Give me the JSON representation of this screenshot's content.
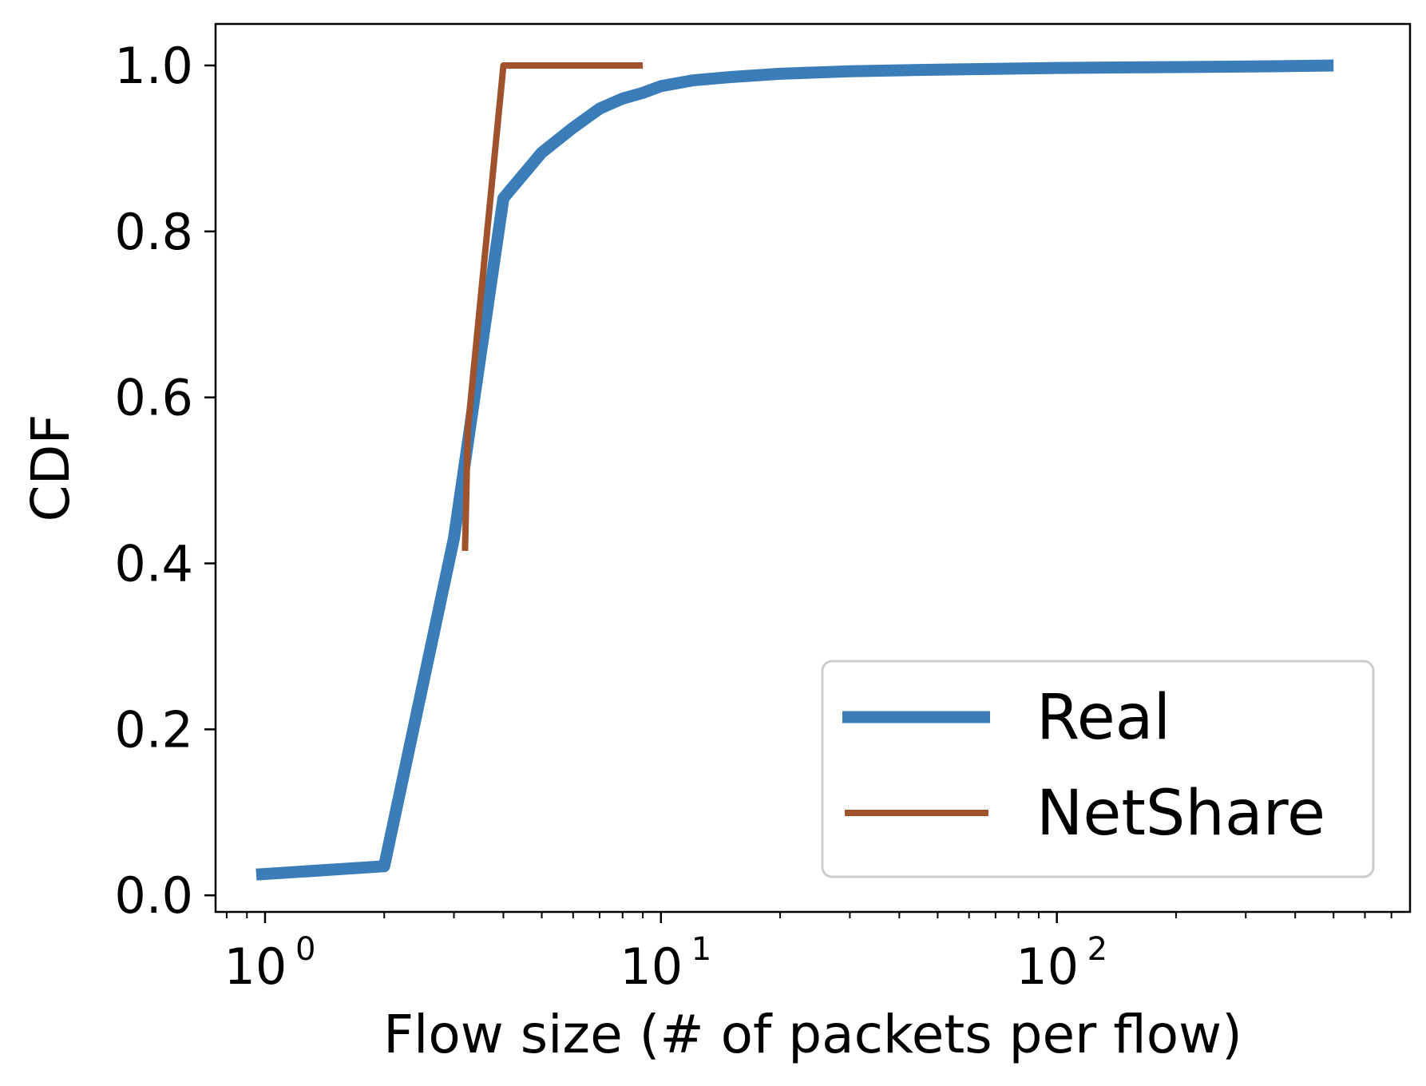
{
  "chart_data": {
    "type": "line",
    "title": "",
    "xlabel": "Flow size (# of packets per flow)",
    "ylabel": "CDF",
    "xscale": "log",
    "xlim": [
      0.75,
      780
    ],
    "ylim": [
      -0.02,
      1.05
    ],
    "x_ticks": [
      {
        "value": 1,
        "base": "10",
        "exp": "0"
      },
      {
        "value": 10,
        "base": "10",
        "exp": "1"
      },
      {
        "value": 100,
        "base": "10",
        "exp": "2"
      }
    ],
    "y_ticks": [
      {
        "value": 0.0,
        "label": "0.0"
      },
      {
        "value": 0.2,
        "label": "0.2"
      },
      {
        "value": 0.4,
        "label": "0.4"
      },
      {
        "value": 0.6,
        "label": "0.6"
      },
      {
        "value": 0.8,
        "label": "0.8"
      },
      {
        "value": 1.0,
        "label": "1.0"
      }
    ],
    "legend_position": "bottom-right",
    "grid": false,
    "series": [
      {
        "name": "Real",
        "color": "#3a7db8",
        "width": "thick",
        "points": [
          [
            0.95,
            0.025
          ],
          [
            2,
            0.035
          ],
          [
            3,
            0.43
          ],
          [
            4,
            0.84
          ],
          [
            5,
            0.895
          ],
          [
            6,
            0.925
          ],
          [
            7,
            0.948
          ],
          [
            8,
            0.96
          ],
          [
            9,
            0.967
          ],
          [
            10,
            0.975
          ],
          [
            12,
            0.982
          ],
          [
            15,
            0.986
          ],
          [
            20,
            0.99
          ],
          [
            30,
            0.993
          ],
          [
            50,
            0.995
          ],
          [
            100,
            0.997
          ],
          [
            200,
            0.998
          ],
          [
            350,
            0.999
          ],
          [
            500,
            1.0
          ]
        ]
      },
      {
        "name": "NetShare",
        "color": "#a0522d",
        "width": "medium",
        "points": [
          [
            3.2,
            0.415
          ],
          [
            3.25,
            0.56
          ],
          [
            4.0,
            1.0
          ],
          [
            9.0,
            1.0
          ]
        ]
      }
    ]
  }
}
